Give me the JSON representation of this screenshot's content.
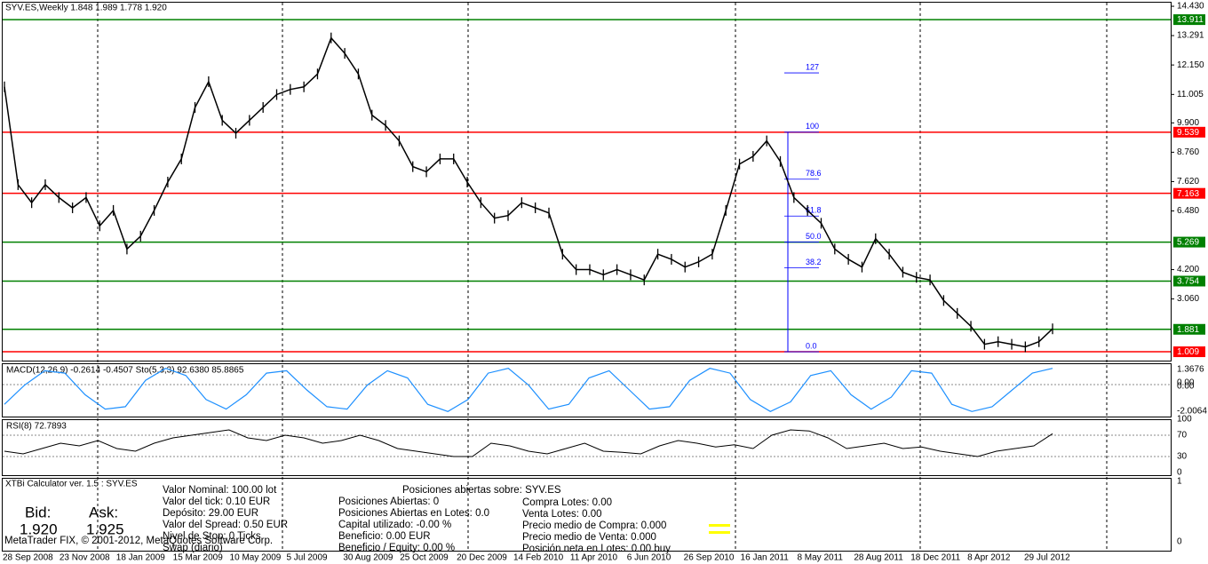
{
  "header": {
    "title": "SYV.ES,Weekly  1.848 1.989 1.778 1.920"
  },
  "price_chart": {
    "ylim": [
      0.7,
      14.57
    ],
    "yticks": [
      {
        "value": 14.43,
        "label": "14.430"
      },
      13.291,
      {
        "value": 12.15,
        "label": "12.150"
      },
      11.005,
      {
        "value": 9.9,
        "label": "9.900"
      },
      {
        "value": 8.76,
        "label": "8.760"
      },
      {
        "value": 7.62,
        "label": "7.620"
      },
      {
        "value": 6.48,
        "label": "6.480"
      },
      {
        "value": 4.2,
        "label": "4.200"
      },
      {
        "value": 3.06,
        "label": "3.060"
      }
    ],
    "levels": [
      {
        "value": 13.911,
        "color": "#008000"
      },
      {
        "value": 9.539,
        "color": "#ff0000"
      },
      {
        "value": 7.163,
        "color": "#ff0000"
      },
      {
        "value": 5.269,
        "color": "#008000"
      },
      {
        "value": 3.754,
        "color": "#008000"
      },
      {
        "value": 1.881,
        "color": "#008000"
      },
      {
        "value": 1.009,
        "color": "#ff0000"
      }
    ],
    "fibo_labels": [
      "127",
      "100",
      "78.6",
      "61.8",
      "50.0",
      "38.2",
      "0.0"
    ],
    "closes": [
      11.3,
      7.5,
      6.8,
      7.5,
      7.0,
      6.6,
      7.0,
      5.9,
      6.5,
      5.0,
      5.5,
      6.5,
      7.6,
      8.5,
      10.5,
      11.5,
      10.0,
      9.5,
      10.0,
      10.5,
      11.0,
      11.2,
      11.3,
      11.8,
      13.2,
      12.6,
      11.8,
      10.2,
      9.8,
      9.2,
      8.2,
      8.0,
      8.5,
      8.5,
      7.6,
      6.8,
      6.2,
      6.3,
      6.8,
      6.6,
      6.4,
      4.8,
      4.2,
      4.2,
      4.0,
      4.2,
      4.0,
      3.8,
      4.8,
      4.6,
      4.3,
      4.5,
      4.8,
      6.5,
      8.3,
      8.6,
      9.2,
      8.4,
      7.0,
      6.5,
      6.0,
      5.0,
      4.6,
      4.3,
      5.4,
      4.8,
      4.1,
      3.9,
      3.8,
      3.0,
      2.5,
      2.0,
      1.3,
      1.4,
      1.3,
      1.2,
      1.4,
      1.9
    ]
  },
  "x_axis": {
    "labels": [
      "28 Sep 2008",
      "23 Nov 2008",
      "18 Jan 2009",
      "15 Mar 2009",
      "10 May 2009",
      "5 Jul 2009",
      "30 Aug 2009",
      "25 Oct 2009",
      "20 Dec 2009",
      "14 Feb 2010",
      "11 Apr 2010",
      "6 Jun 2010",
      "26 Sep 2010",
      "16 Jan 2011",
      "8 May 2011",
      "28 Aug 2011",
      "18 Dec 2011",
      "8 Apr 2012",
      "29 Jul 2012"
    ]
  },
  "macd_panel": {
    "title": "MACD(12,26,9) -0.2614 -0.4507  Sto(5,3,3) 92.6380 85.8865",
    "right_labels": [
      "1.3676",
      "0.00",
      "0.00",
      "-2.0064"
    ],
    "stochastic": [
      20,
      60,
      90,
      85,
      40,
      10,
      15,
      70,
      95,
      80,
      30,
      10,
      40,
      85,
      90,
      50,
      15,
      10,
      60,
      90,
      75,
      20,
      5,
      30,
      85,
      95,
      60,
      10,
      20,
      75,
      90,
      50,
      10,
      15,
      70,
      95,
      85,
      30,
      5,
      25,
      80,
      90,
      40,
      10,
      35,
      90,
      85,
      20,
      5,
      15,
      50,
      85,
      95
    ]
  },
  "rsi_panel": {
    "title": "RSI(8) 72.7893",
    "ylim": [
      0,
      100
    ],
    "yticks": [
      100,
      70,
      30,
      0
    ],
    "values": [
      40,
      35,
      45,
      55,
      50,
      60,
      45,
      40,
      55,
      65,
      70,
      75,
      80,
      65,
      60,
      70,
      65,
      55,
      60,
      70,
      60,
      45,
      40,
      35,
      30,
      30,
      55,
      50,
      40,
      35,
      45,
      55,
      40,
      38,
      35,
      50,
      60,
      55,
      48,
      52,
      45,
      70,
      80,
      78,
      65,
      45,
      50,
      55,
      45,
      48,
      40,
      35,
      30,
      40,
      45,
      50,
      72.7893
    ]
  },
  "calculator": {
    "title": "XTBi Calculator ver. 1.5 : SYV.ES",
    "right_labels": [
      "1",
      "0"
    ],
    "bid_label": "Bid:",
    "ask_label": "Ask:",
    "bid": "1.920",
    "ask": "1.925",
    "col1": [
      "Valor Nominal: 100.00 lot",
      "Valor del tick: 0.10 EUR",
      "Depósito: 29.00 EUR",
      "Valor del Spread: 0.50 EUR",
      "Nivel de Stop: 0 Ticks",
      "Swap (diario)"
    ],
    "heading": "Posiciones abiertas sobre: SYV.ES",
    "col2": [
      "Posiciones Abiertas: 0",
      "Posiciones Abiertas en Lotes: 0.0",
      "Capital utilizado: -0.00 %",
      "Beneficio: 0.00 EUR",
      "Beneficio / Equity: 0.00 %"
    ],
    "col3": [
      "Compra Lotes: 0.00",
      "Venta Lotes: 0.00",
      "Precio medio de Compra: 0.000",
      "Precio medio de Venta: 0.000",
      "Posición neta en Lotes: 0.00 buy"
    ],
    "footer": "MetaTrader FIX, © 2001-2012, MetaQuotes Software Corp."
  }
}
